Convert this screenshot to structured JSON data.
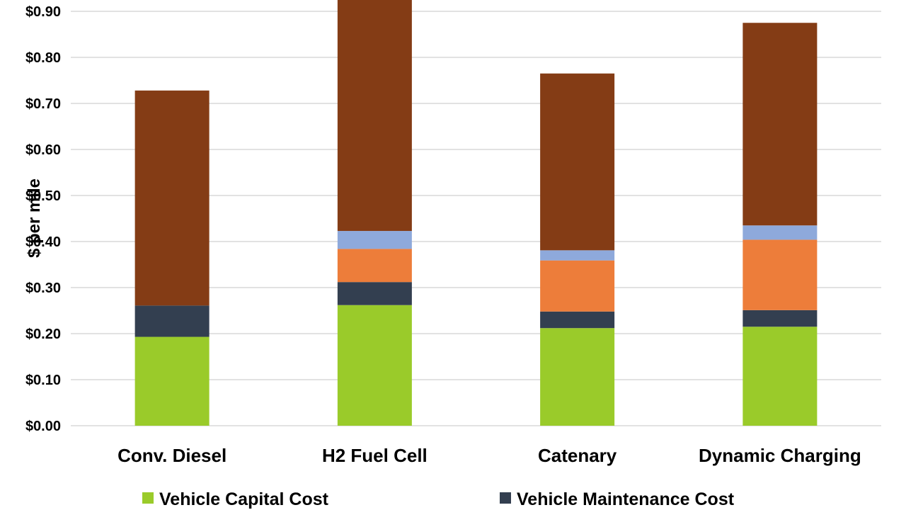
{
  "chart_data": {
    "type": "bar",
    "stacked": true,
    "title": "",
    "xlabel": "",
    "ylabel": "$ per mile",
    "ylim": [
      0,
      0.9
    ],
    "yticks": [
      "$0.00",
      "$0.10",
      "$0.20",
      "$0.30",
      "$0.40",
      "$0.50",
      "$0.60",
      "$0.70",
      "$0.80",
      "$0.90"
    ],
    "categories": [
      "Conv. Diesel",
      "H2 Fuel Cell",
      "Catenary",
      "Dynamic Charging"
    ],
    "grid": true,
    "legend_position": "bottom",
    "series": [
      {
        "name": "Vehicle Capital Cost",
        "color": "#9ACB2A",
        "values": [
          0.193,
          0.262,
          0.212,
          0.215
        ]
      },
      {
        "name": "Vehicle Maintenance Cost",
        "color": "#333F50",
        "values": [
          0.068,
          0.05,
          0.036,
          0.036
        ]
      },
      {
        "color": "#ED7D3A",
        "values": [
          0.0,
          0.072,
          0.111,
          0.153
        ]
      },
      {
        "color": "#8EA9DB",
        "values": [
          0.0,
          0.039,
          0.022,
          0.031
        ]
      },
      {
        "color": "#843C15",
        "values": [
          0.467,
          0.52,
          0.384,
          0.44
        ]
      }
    ]
  }
}
